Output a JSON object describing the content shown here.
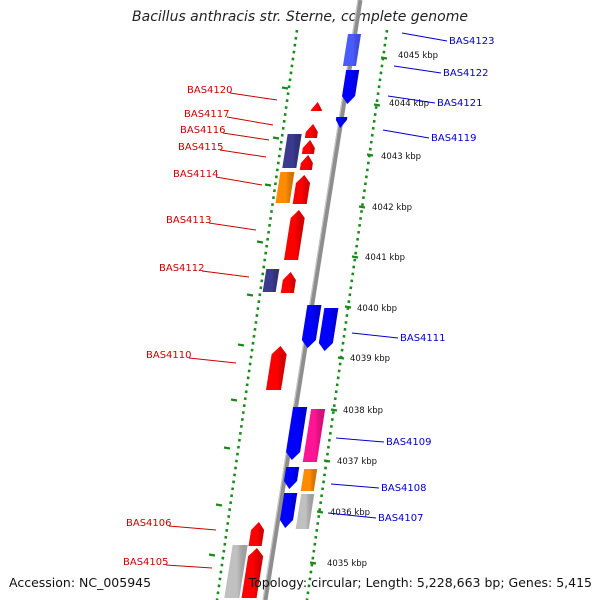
{
  "title": "Bacillus anthracis str. Sterne, complete genome",
  "accession": "Accession: NC_005945",
  "topology": "Topology: circular; Length: 5,228,663 bp; Genes: 5,415",
  "colors": {
    "reverse_label": "#cc0000",
    "forward_label": "#0000cc",
    "dots": "#1a8a1a",
    "backbone": "#8c8c8c"
  },
  "kbp_labels": [
    "4045 kbp",
    "4044 kbp",
    "4043 kbp",
    "4042 kbp",
    "4041 kbp",
    "4040 kbp",
    "4039 kbp",
    "4038 kbp",
    "4037 kbp",
    "4036 kbp",
    "4035 kbp"
  ],
  "genes_left": [
    "BAS4120",
    "BAS4117",
    "BAS4116",
    "BAS4115",
    "BAS4114",
    "BAS4113",
    "BAS4112",
    "BAS4110",
    "BAS4106",
    "BAS4105"
  ],
  "genes_right": [
    "BAS4123",
    "BAS4122",
    "BAS4121",
    "BAS4119",
    "BAS4111",
    "BAS4109",
    "BAS4108",
    "BAS4107"
  ]
}
